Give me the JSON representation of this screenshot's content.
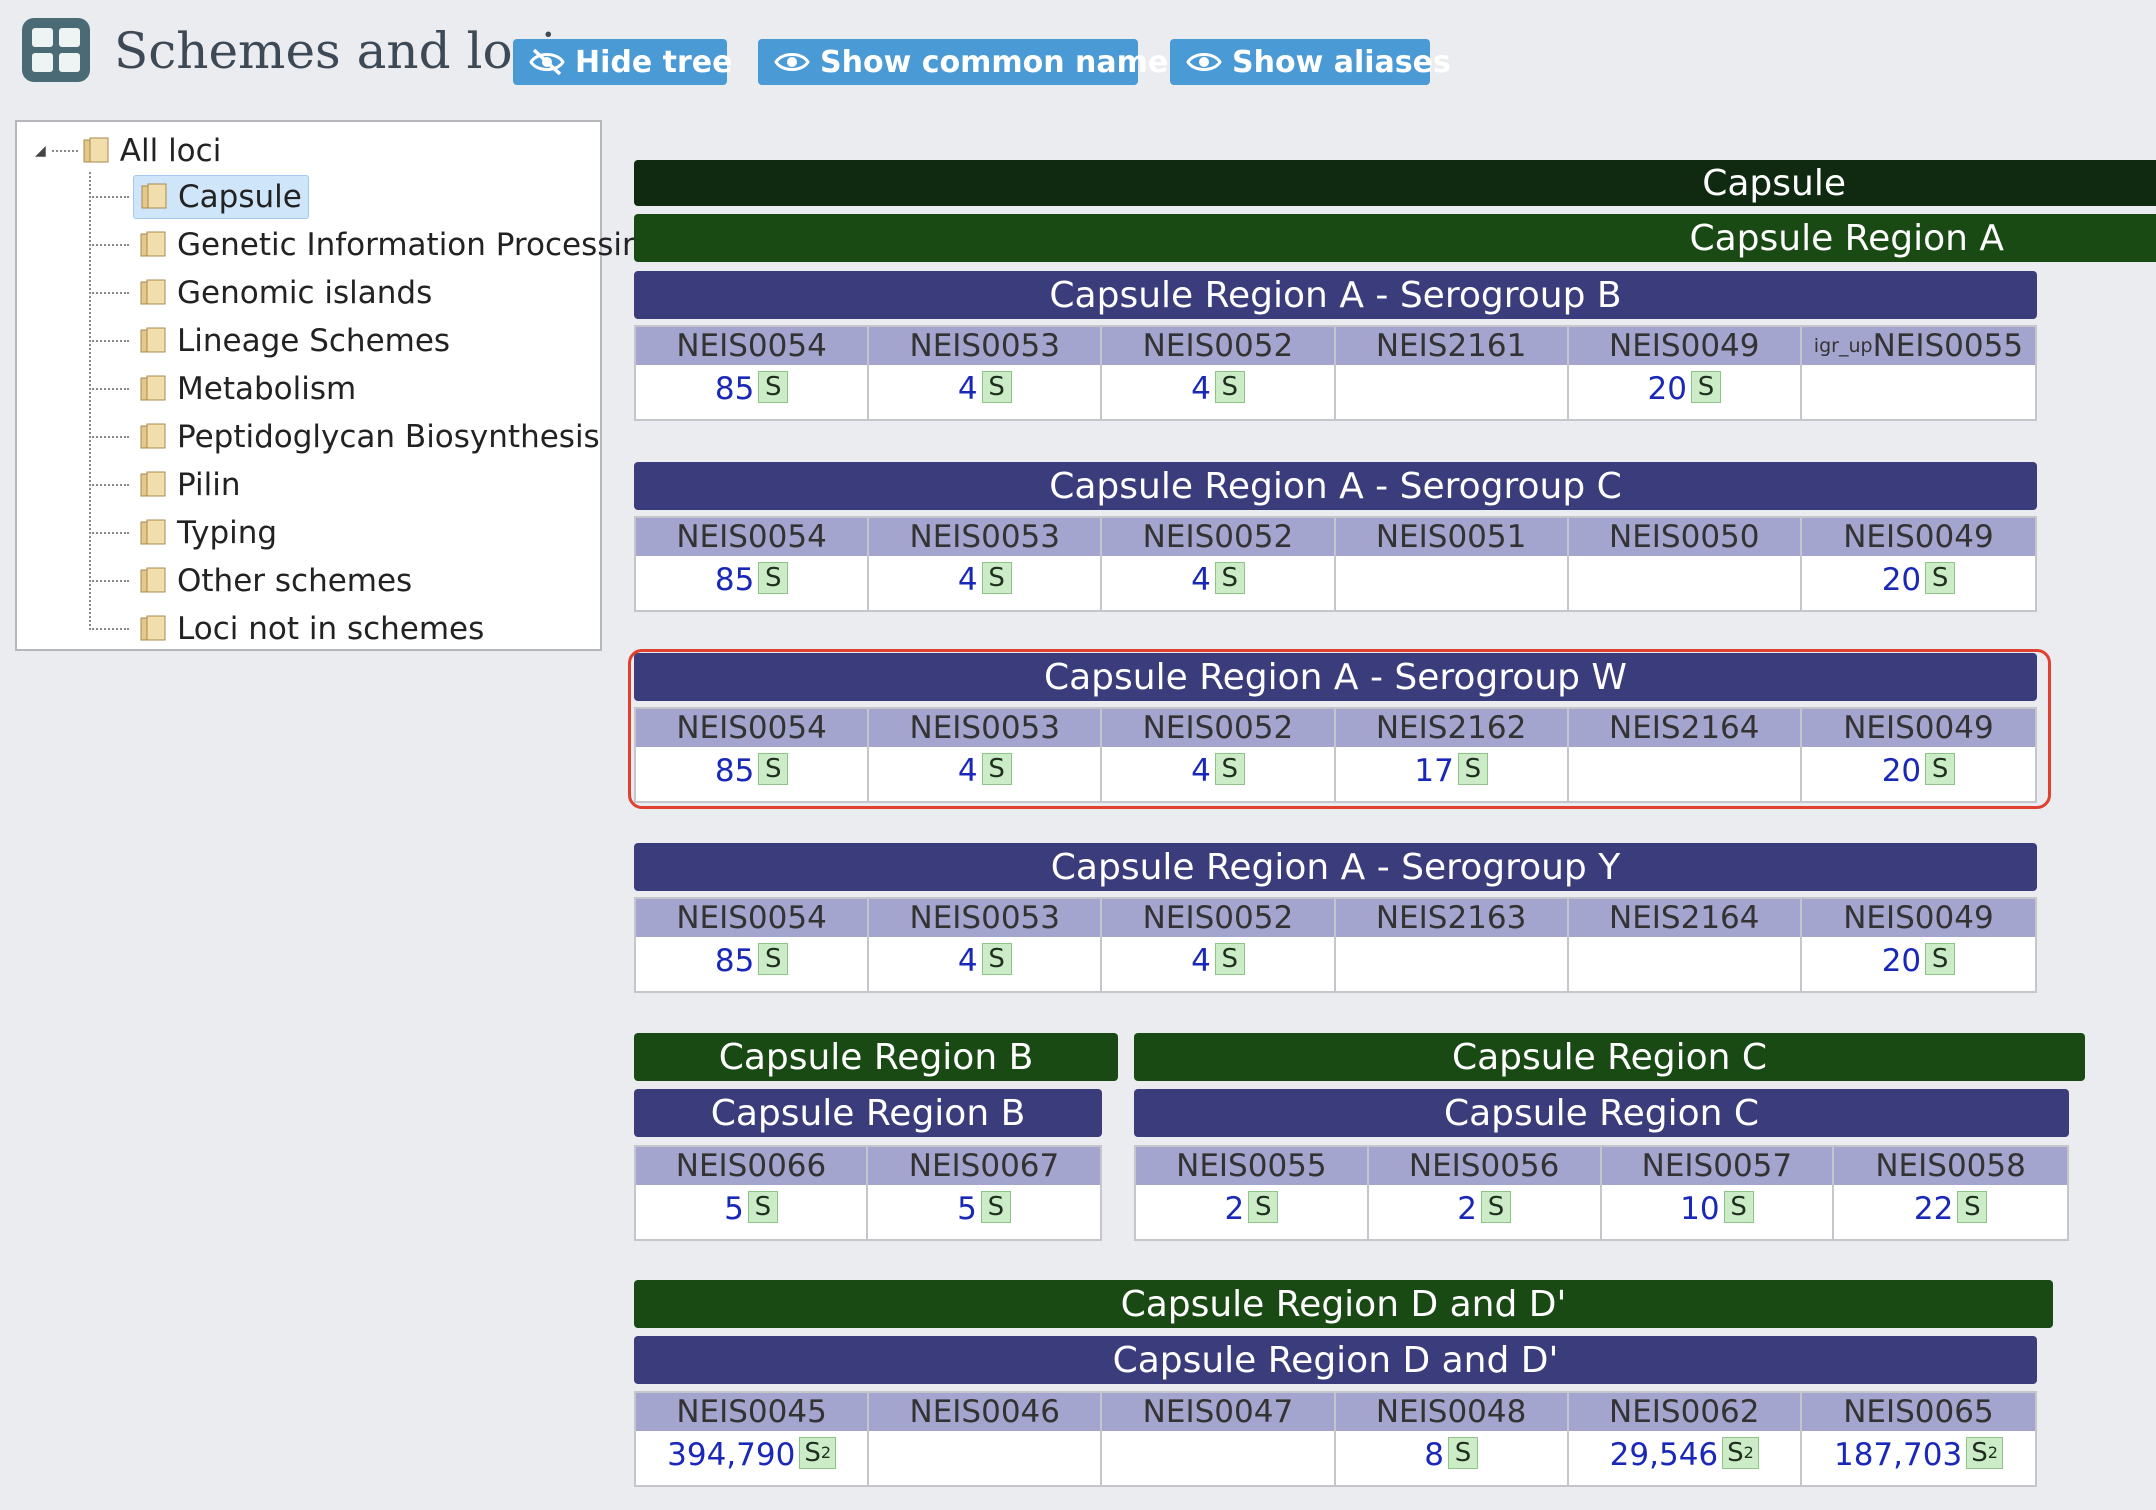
{
  "header": {
    "title": "Schemes and loci",
    "buttons": {
      "hide_tree": "Hide tree",
      "show_common_names": "Show common names",
      "show_aliases": "Show aliases"
    }
  },
  "tree": {
    "root": "All loci",
    "items": [
      "Capsule",
      "Genetic Information Processing",
      "Genomic islands",
      "Lineage Schemes",
      "Metabolism",
      "Peptidoglycan Biosynthesis",
      "Pilin",
      "Typing",
      "Other schemes",
      "Loci not in schemes"
    ],
    "selected": "Capsule"
  },
  "content": {
    "groups": {
      "capsule": "Capsule",
      "region_a": "Capsule Region A",
      "region_b_group": "Capsule Region B",
      "region_c_group": "Capsule Region C",
      "region_d_group": "Capsule Region D and D'"
    },
    "schemes": [
      {
        "title": "Capsule Region A - Serogroup B",
        "loci": [
          {
            "name": "NEIS0054",
            "count": "85",
            "badge": "S"
          },
          {
            "name": "NEIS0053",
            "count": "4",
            "badge": "S"
          },
          {
            "name": "NEIS0052",
            "count": "4",
            "badge": "S"
          },
          {
            "name": "NEIS2161",
            "count": "",
            "badge": ""
          },
          {
            "name": "NEIS0049",
            "count": "20",
            "badge": "S"
          },
          {
            "name": "NEIS0055",
            "prefix": "igr_up",
            "count": "",
            "badge": ""
          }
        ]
      },
      {
        "title": "Capsule Region A - Serogroup C",
        "loci": [
          {
            "name": "NEIS0054",
            "count": "85",
            "badge": "S"
          },
          {
            "name": "NEIS0053",
            "count": "4",
            "badge": "S"
          },
          {
            "name": "NEIS0052",
            "count": "4",
            "badge": "S"
          },
          {
            "name": "NEIS0051",
            "count": "",
            "badge": ""
          },
          {
            "name": "NEIS0050",
            "count": "",
            "badge": ""
          },
          {
            "name": "NEIS0049",
            "count": "20",
            "badge": "S"
          }
        ]
      },
      {
        "title": "Capsule Region A - Serogroup W",
        "loci": [
          {
            "name": "NEIS0054",
            "count": "85",
            "badge": "S"
          },
          {
            "name": "NEIS0053",
            "count": "4",
            "badge": "S"
          },
          {
            "name": "NEIS0052",
            "count": "4",
            "badge": "S"
          },
          {
            "name": "NEIS2162",
            "count": "17",
            "badge": "S"
          },
          {
            "name": "NEIS2164",
            "count": "",
            "badge": ""
          },
          {
            "name": "NEIS0049",
            "count": "20",
            "badge": "S"
          }
        ]
      },
      {
        "title": "Capsule Region A - Serogroup Y",
        "loci": [
          {
            "name": "NEIS0054",
            "count": "85",
            "badge": "S"
          },
          {
            "name": "NEIS0053",
            "count": "4",
            "badge": "S"
          },
          {
            "name": "NEIS0052",
            "count": "4",
            "badge": "S"
          },
          {
            "name": "NEIS2163",
            "count": "",
            "badge": ""
          },
          {
            "name": "NEIS2164",
            "count": "",
            "badge": ""
          },
          {
            "name": "NEIS0049",
            "count": "20",
            "badge": "S"
          }
        ]
      },
      {
        "title": "Capsule Region B",
        "loci": [
          {
            "name": "NEIS0066",
            "count": "5",
            "badge": "S"
          },
          {
            "name": "NEIS0067",
            "count": "5",
            "badge": "S"
          }
        ]
      },
      {
        "title": "Capsule Region C",
        "loci": [
          {
            "name": "NEIS0055",
            "count": "2",
            "badge": "S"
          },
          {
            "name": "NEIS0056",
            "count": "2",
            "badge": "S"
          },
          {
            "name": "NEIS0057",
            "count": "10",
            "badge": "S"
          },
          {
            "name": "NEIS0058",
            "count": "22",
            "badge": "S"
          }
        ]
      },
      {
        "title": "Capsule Region D and D'",
        "loci": [
          {
            "name": "NEIS0045",
            "count": "394,790",
            "badge": "S",
            "badge_sub": "2"
          },
          {
            "name": "NEIS0046",
            "count": "",
            "badge": ""
          },
          {
            "name": "NEIS0047",
            "count": "",
            "badge": ""
          },
          {
            "name": "NEIS0048",
            "count": "8",
            "badge": "S"
          },
          {
            "name": "NEIS0062",
            "count": "29,546",
            "badge": "S",
            "badge_sub": "2"
          },
          {
            "name": "NEIS0065",
            "count": "187,703",
            "badge": "S",
            "badge_sub": "2"
          }
        ]
      }
    ],
    "highlighted_scheme": "Capsule Region A - Serogroup W"
  },
  "colors": {
    "background": "#ebecf0",
    "button": "#4a9ad6",
    "group_bar_dark": "#0f2a10",
    "group_bar": "#1a4a14",
    "scheme_bar": "#3b3c7c",
    "locus_header": "#a4a5cf",
    "count_link": "#1a28b8",
    "sequence_badge": "#cbecc7",
    "highlight": "#e0402f",
    "tree_selected": "#cfe5fa"
  },
  "icons": {
    "page": "schemes-grid-icon",
    "hide_tree": "eye-slash-icon",
    "show_common_names": "eye-icon",
    "show_aliases": "eye-icon",
    "tree_node": "folder-icon"
  }
}
